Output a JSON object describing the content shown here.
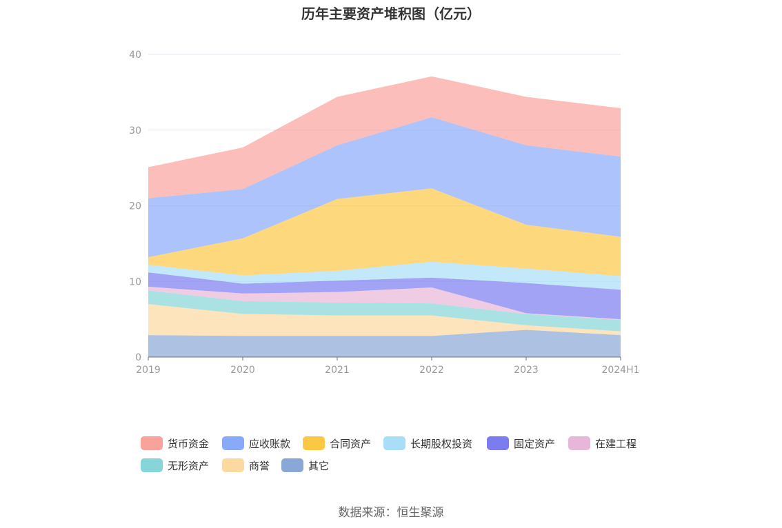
{
  "title": "历年主要资产堆积图（亿元）",
  "source": "数据来源：恒生聚源",
  "chart_data": {
    "type": "area",
    "stacked": true,
    "title": "历年主要资产堆积图（亿元）",
    "x": [
      "2019",
      "2020",
      "2021",
      "2022",
      "2023",
      "2024H1"
    ],
    "ylim": [
      0,
      40
    ],
    "yticks": [
      0,
      10,
      20,
      30,
      40
    ],
    "grid": true,
    "legend_position": "bottom",
    "series": [
      {
        "name": "其它",
        "color": "#8aa8d6",
        "values": [
          2.9,
          2.8,
          2.8,
          2.8,
          3.6,
          2.9
        ]
      },
      {
        "name": "商誉",
        "color": "#fcd9a0",
        "values": [
          4.1,
          2.9,
          2.7,
          2.7,
          0.6,
          0.5
        ]
      },
      {
        "name": "无形资产",
        "color": "#86d5d8",
        "values": [
          1.8,
          1.7,
          1.7,
          1.6,
          1.5,
          1.5
        ]
      },
      {
        "name": "在建工程",
        "color": "#e8b6d8",
        "values": [
          0.5,
          1.0,
          1.4,
          2.1,
          0.1,
          0.1
        ]
      },
      {
        "name": "固定资产",
        "color": "#7b7cf0",
        "values": [
          1.9,
          1.3,
          1.5,
          1.3,
          4.0,
          3.9
        ]
      },
      {
        "name": "长期股权投资",
        "color": "#a8def8",
        "values": [
          1.0,
          1.1,
          1.3,
          2.1,
          1.9,
          1.8
        ]
      },
      {
        "name": "合同资产",
        "color": "#fcc844",
        "values": [
          1.0,
          4.9,
          9.5,
          9.7,
          5.8,
          5.2
        ]
      },
      {
        "name": "应收账款",
        "color": "#89a9fb",
        "values": [
          7.8,
          6.5,
          7.1,
          9.4,
          10.5,
          10.6
        ]
      },
      {
        "name": "货币资金",
        "color": "#f9a29c",
        "values": [
          4.1,
          5.5,
          6.4,
          5.4,
          6.4,
          6.4
        ]
      }
    ]
  },
  "legend": [
    {
      "label": "货币资金",
      "color": "#f9a29c"
    },
    {
      "label": "应收账款",
      "color": "#89a9fb"
    },
    {
      "label": "合同资产",
      "color": "#fcc844"
    },
    {
      "label": "长期股权投资",
      "color": "#a8def8"
    },
    {
      "label": "固定资产",
      "color": "#7b7cf0"
    },
    {
      "label": "在建工程",
      "color": "#e8b6d8"
    },
    {
      "label": "无形资产",
      "color": "#86d5d8"
    },
    {
      "label": "商誉",
      "color": "#fcd9a0"
    },
    {
      "label": "其它",
      "color": "#8aa8d6"
    }
  ]
}
